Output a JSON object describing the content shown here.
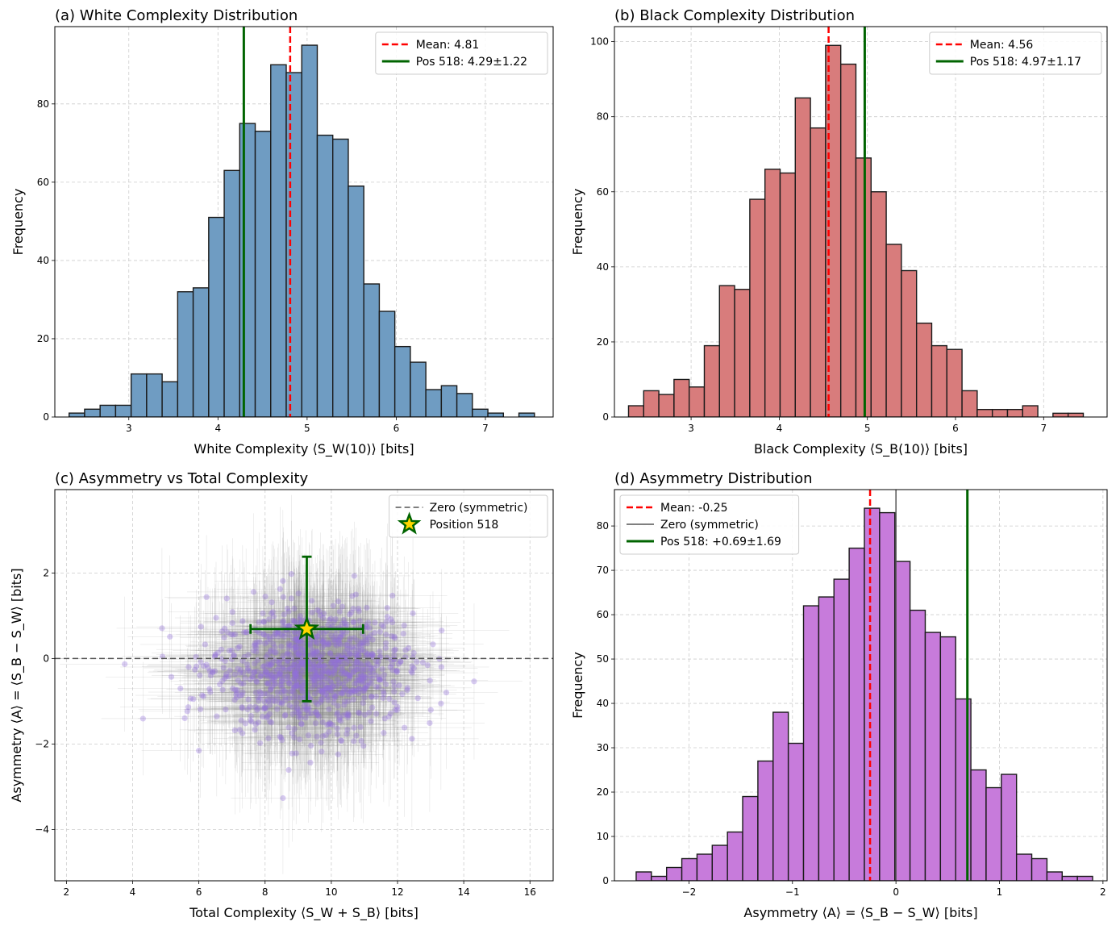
{
  "colors": {
    "white_bar": "#6f9cc2",
    "black_bar": "#d87c7c",
    "asym_bar": "#c77bdb",
    "mean_line": "#ff0000",
    "pos_line": "#006400",
    "zero_line": "#555555",
    "scatter_point": "#9370db",
    "star_fill": "#ffd700",
    "grid": "#cccccc"
  },
  "chart_data": [
    {
      "type": "bar",
      "title": "(a) White Complexity Distribution",
      "xlabel": "White Complexity ⟨S_W(10)⟩ [bits]",
      "ylabel": "Frequency",
      "xlim": [
        2.17,
        7.76
      ],
      "ylim": [
        0,
        99.75
      ],
      "xticks": [
        3,
        4,
        5,
        6,
        7
      ],
      "yticks": [
        0,
        20,
        40,
        60,
        80
      ],
      "bin_edges": [
        2.33,
        2.504,
        2.678,
        2.852,
        3.026,
        3.2,
        3.374,
        3.548,
        3.722,
        3.896,
        4.07,
        4.244,
        4.418,
        4.592,
        4.766,
        4.94,
        5.114,
        5.288,
        5.462,
        5.636,
        5.81,
        5.984,
        6.158,
        6.332,
        6.506,
        6.68,
        6.854,
        7.028,
        7.202,
        7.376,
        7.55
      ],
      "values": [
        1,
        2,
        3,
        3,
        11,
        11,
        9,
        32,
        33,
        51,
        63,
        75,
        73,
        90,
        88,
        95,
        72,
        71,
        59,
        34,
        27,
        18,
        14,
        7,
        8,
        6,
        2,
        1,
        0,
        1
      ],
      "mean": 4.81,
      "pos": 4.29,
      "legend": [
        "Mean: 4.81",
        "Pos 518: 4.29±1.22"
      ],
      "legend_position": "top-right"
    },
    {
      "type": "bar",
      "title": "(b) Black Complexity Distribution",
      "xlabel": "Black Complexity ⟨S_B(10)⟩ [bits]",
      "ylabel": "Frequency",
      "xlim": [
        2.13,
        7.72
      ],
      "ylim": [
        0,
        104
      ],
      "xticks": [
        3,
        4,
        5,
        6,
        7
      ],
      "yticks": [
        0,
        20,
        40,
        60,
        80,
        100
      ],
      "bin_edges": [
        2.29,
        2.462,
        2.634,
        2.806,
        2.978,
        3.15,
        3.322,
        3.494,
        3.666,
        3.838,
        4.01,
        4.182,
        4.354,
        4.526,
        4.698,
        4.87,
        5.042,
        5.214,
        5.386,
        5.558,
        5.73,
        5.902,
        6.074,
        6.246,
        6.418,
        6.59,
        6.762,
        6.934,
        7.106,
        7.278,
        7.45
      ],
      "values": [
        3,
        7,
        6,
        10,
        8,
        19,
        35,
        34,
        58,
        66,
        65,
        85,
        77,
        99,
        94,
        69,
        60,
        46,
        39,
        25,
        19,
        18,
        7,
        2,
        2,
        2,
        3,
        0,
        1,
        1
      ],
      "mean": 4.56,
      "pos": 4.97,
      "legend": [
        "Mean: 4.56",
        "Pos 518: 4.97±1.17"
      ],
      "legend_position": "top-right"
    },
    {
      "type": "scatter",
      "title": "(c) Asymmetry vs Total Complexity",
      "xlabel": "Total Complexity ⟨S_W + S_B⟩ [bits]",
      "ylabel": "Asymmetry ⟨A⟩ = ⟨S_B − S_W⟩ [bits]",
      "xlim": [
        1.65,
        16.7
      ],
      "ylim": [
        -5.2,
        3.95
      ],
      "xticks": [
        2,
        4,
        6,
        8,
        10,
        12,
        14,
        16
      ],
      "yticks": [
        -4,
        -2,
        0,
        2
      ],
      "center": [
        9.4,
        -0.25
      ],
      "spread": [
        1.5,
        0.75
      ],
      "n_points": 1000,
      "highlight": {
        "x": 9.26,
        "y": 0.69,
        "xerr": 1.7,
        "yerr": 1.69
      },
      "zero_line": 0,
      "legend": [
        "Zero (symmetric)",
        "Position 518"
      ],
      "legend_position": "top-right"
    },
    {
      "type": "bar",
      "title": "(d) Asymmetry Distribution",
      "xlabel": "Asymmetry ⟨A⟩ = ⟨S_B − S_W⟩ [bits]",
      "ylabel": "Frequency",
      "xlim": [
        -2.72,
        2.04
      ],
      "ylim": [
        0,
        88.2
      ],
      "xticks": [
        -2,
        -1,
        0,
        1,
        2
      ],
      "yticks": [
        0,
        10,
        20,
        30,
        40,
        50,
        60,
        70,
        80
      ],
      "bin_edges": [
        -2.51,
        -2.363,
        -2.216,
        -2.069,
        -1.922,
        -1.775,
        -1.628,
        -1.481,
        -1.334,
        -1.187,
        -1.04,
        -0.893,
        -0.746,
        -0.599,
        -0.452,
        -0.305,
        -0.158,
        -0.011,
        0.136,
        0.283,
        0.43,
        0.577,
        0.724,
        0.871,
        1.018,
        1.165,
        1.312,
        1.459,
        1.606,
        1.753,
        1.9
      ],
      "values": [
        2,
        1,
        3,
        5,
        6,
        8,
        11,
        19,
        27,
        38,
        31,
        62,
        64,
        68,
        75,
        84,
        83,
        72,
        61,
        56,
        55,
        41,
        25,
        21,
        24,
        6,
        5,
        2,
        1,
        1
      ],
      "mean": -0.25,
      "zero": 0,
      "pos": 0.69,
      "legend": [
        "Mean: -0.25",
        "Zero (symmetric)",
        "Pos 518: +0.69±1.69"
      ],
      "legend_position": "top-left"
    }
  ]
}
